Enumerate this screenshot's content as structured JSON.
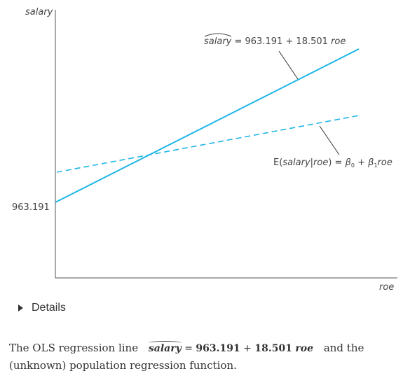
{
  "chart_data": {
    "type": "line",
    "xlabel": "roe",
    "ylabel": "salary",
    "intercept_tick_label": "963.191",
    "series": [
      {
        "name": "salary-hat = 963.191 + 18.501 roe",
        "style": "solid",
        "intercept": 963.191,
        "slope": 18.501
      },
      {
        "name": "E(salary|roe) = β0 + β1roe",
        "style": "dashed"
      }
    ]
  },
  "figure": {
    "ylabel": "salary",
    "xlabel": "roe",
    "y_tick_label": "963.191",
    "ols_label": {
      "lhs": "salary",
      "eq": " = 963.191 + 18.501 ",
      "var": "roe"
    },
    "prf_label": {
      "prefix": "E(",
      "cond": "salary|roe",
      "eq": ") = ",
      "b0": "β",
      "b0_sub": "0",
      "plus": " + ",
      "b1": "β",
      "b1_sub": "1",
      "var": "roe"
    }
  },
  "details": {
    "label": "Details"
  },
  "caption": {
    "before": "The OLS regression line",
    "math_lhs": "salary",
    "math_eq": " = ",
    "math_const": "963.191",
    "math_plus": " + ",
    "math_coef": "18.501",
    "math_var": "roe",
    "after": "and the (unknown) population regression function."
  },
  "colors": {
    "line": "#1fb6e6",
    "axis": "#555555",
    "text": "#444444"
  }
}
